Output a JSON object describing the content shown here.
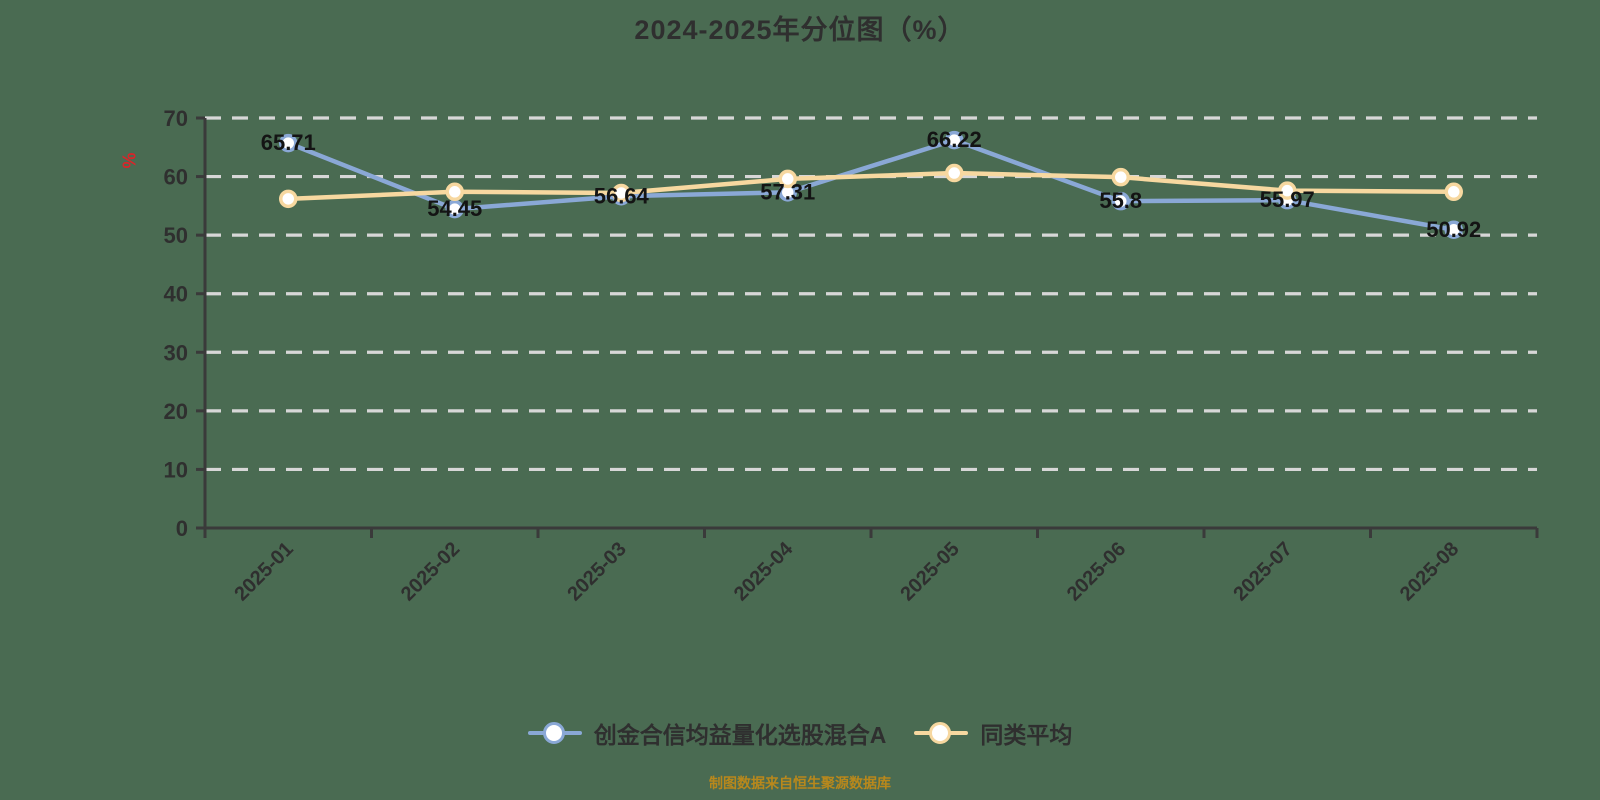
{
  "title": "2024-2025年分位图（%）",
  "y_axis": {
    "name": "%",
    "name_color": "#d9252a",
    "ticks": [
      0,
      10,
      20,
      30,
      40,
      50,
      60,
      70
    ]
  },
  "footer": {
    "text": "制图数据来自恒生聚源数据库",
    "color": "#b8881c"
  },
  "colors": {
    "background": "#4a6b52",
    "axis": "#3a3a3a",
    "grid": "#d7d7d7",
    "tick_label": "#2f2f2f",
    "data_label": "#141414",
    "series_fund": "#8aa8d6",
    "series_peer": "#f7d8a0",
    "point_fill": "#ffffff"
  },
  "legend": {
    "items": [
      {
        "label": "创金合信均益量化选股混合A",
        "color": "#8aa8d6"
      },
      {
        "label": "同类平均",
        "color": "#f7d8a0"
      }
    ]
  },
  "chart_data": {
    "type": "line",
    "title": "2024-2025年分位图（%）",
    "categories": [
      "2025-01",
      "2025-02",
      "2025-03",
      "2025-04",
      "2025-05",
      "2025-06",
      "2025-07",
      "2025-08"
    ],
    "series": [
      {
        "name": "创金合信均益量化选股混合A",
        "color": "#8aa8d6",
        "values": [
          65.71,
          54.45,
          56.64,
          57.31,
          66.22,
          55.8,
          55.97,
          50.92
        ],
        "data_labels": true
      },
      {
        "name": "同类平均",
        "color": "#f7d8a0",
        "values": [
          56.2,
          57.4,
          57.2,
          59.6,
          60.6,
          59.9,
          57.6,
          57.4
        ],
        "data_labels": false,
        "values_estimated_from_pixels": true
      }
    ],
    "xlabel": "",
    "ylabel": "%",
    "ylim": [
      0,
      70
    ],
    "y_ticks": [
      0,
      10,
      20,
      30,
      40,
      50,
      60,
      70
    ],
    "grid": {
      "horizontal_dashed": true
    },
    "legend_position": "bottom",
    "x_label_rotation_deg": 45,
    "point_style": "white circle with colored ring"
  }
}
